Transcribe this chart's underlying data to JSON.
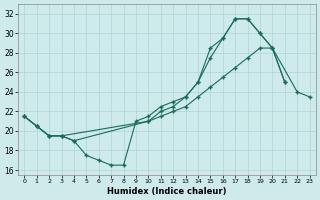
{
  "xlabel": "Humidex (Indice chaleur)",
  "bg_color": "#ceeaea",
  "grid_color": "#add4d4",
  "line_color": "#1a6b5a",
  "xlim": [
    -0.5,
    23.5
  ],
  "ylim": [
    15.5,
    33.0
  ],
  "xticks": [
    0,
    1,
    2,
    3,
    4,
    5,
    6,
    7,
    8,
    9,
    10,
    11,
    12,
    13,
    14,
    15,
    16,
    17,
    18,
    19,
    20,
    21,
    22,
    23
  ],
  "yticks": [
    16,
    18,
    20,
    22,
    24,
    26,
    28,
    30,
    32
  ],
  "line1_x": [
    0,
    1,
    2,
    3,
    4,
    5,
    6,
    7,
    8,
    9,
    10,
    11,
    12,
    13,
    14,
    15,
    16,
    17,
    18,
    19,
    20,
    21
  ],
  "line1_y": [
    21.5,
    20.5,
    19.5,
    19.5,
    19.0,
    17.5,
    17.0,
    16.5,
    16.5,
    21.0,
    21.5,
    22.5,
    23.0,
    23.5,
    25.0,
    28.5,
    29.5,
    31.5,
    31.5,
    30.0,
    28.5,
    25.0
  ],
  "line2_x": [
    0,
    1,
    2,
    3,
    4,
    10,
    11,
    12,
    13,
    14,
    15,
    16,
    17,
    18,
    19,
    20,
    21
  ],
  "line2_y": [
    21.5,
    20.5,
    19.5,
    19.5,
    19.0,
    21.0,
    22.0,
    22.5,
    23.5,
    25.0,
    27.5,
    29.5,
    31.5,
    31.5,
    30.0,
    28.5,
    25.0
  ],
  "line3_x": [
    0,
    1,
    2,
    3,
    10,
    11,
    12,
    13,
    14,
    15,
    16,
    17,
    18,
    19,
    20,
    22,
    23
  ],
  "line3_y": [
    21.5,
    20.5,
    19.5,
    19.5,
    21.0,
    21.5,
    22.0,
    22.5,
    23.5,
    24.5,
    25.5,
    26.5,
    27.5,
    28.5,
    28.5,
    24.0,
    23.5
  ]
}
